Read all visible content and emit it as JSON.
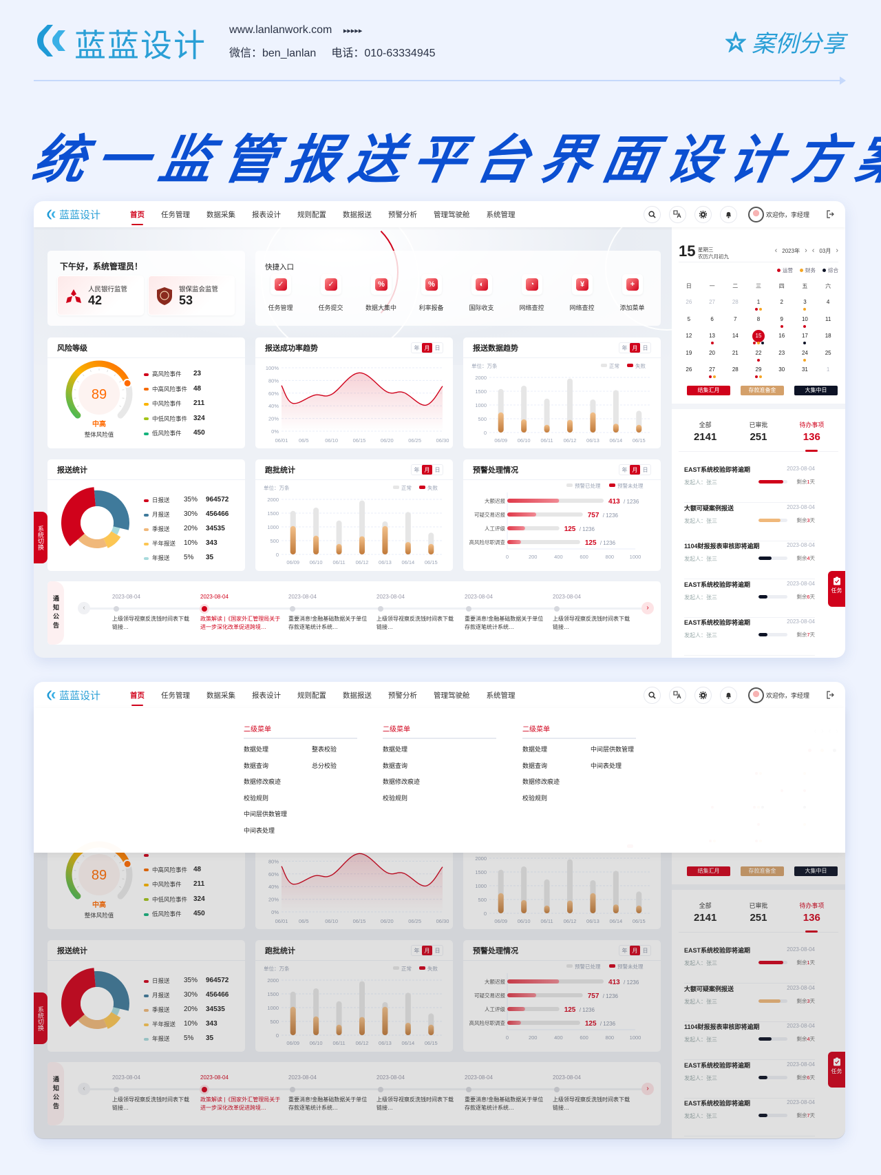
{
  "brand": {
    "logo_text": "蓝蓝设计",
    "website": "www.lanlanwork.com",
    "arrows": "▸▸▸▸▸",
    "wechat": "微信：ben_lanlan",
    "phone": "电话：010-63334945",
    "case_label": "案例分享"
  },
  "page_title": "统一监管报送平台界面设计方案二",
  "app": {
    "logo_text": "蓝蓝设计",
    "nav": [
      "首页",
      "任务管理",
      "数据采集",
      "报表设计",
      "规则配置",
      "数据报送",
      "预警分析",
      "管理驾驶舱",
      "系统管理"
    ],
    "user_greeting": "欢迎你，李经理",
    "greeting": "下午好，系统管理员！",
    "reg_cards": [
      {
        "label": "人民银行监管",
        "value": "42"
      },
      {
        "label": "银保监会监管",
        "value": "53"
      }
    ],
    "quick_title": "快捷入口",
    "quick": [
      {
        "label": "任务管理",
        "glyph": "✓"
      },
      {
        "label": "任务提交",
        "glyph": "✓"
      },
      {
        "label": "数据大集中",
        "glyph": "%"
      },
      {
        "label": "利率报备",
        "glyph": "%"
      },
      {
        "label": "国际收支",
        "glyph": "◐"
      },
      {
        "label": "网络查控",
        "glyph": "◔"
      },
      {
        "label": "网络查控",
        "glyph": "¥"
      },
      {
        "label": "添加菜单",
        "glyph": "+"
      }
    ],
    "segment": [
      "年",
      "月",
      "日"
    ],
    "risk": {
      "title": "风险等级",
      "value": "89",
      "level": "中高",
      "caption": "整体风险值",
      "items": [
        {
          "label": "高风险事件",
          "value": "23",
          "color": "#d0021b"
        },
        {
          "label": "中高风险事件",
          "value": "48",
          "color": "#f56a00"
        },
        {
          "label": "中风险事件",
          "value": "211",
          "color": "#fbb400"
        },
        {
          "label": "中低风险事件",
          "value": "324",
          "color": "#a3c41a"
        },
        {
          "label": "低风险事件",
          "value": "450",
          "color": "#15b37d"
        }
      ]
    },
    "success_title": "报送成功率趋势",
    "trend_title": "报送数据趋势",
    "stats": {
      "title": "报送统计",
      "items": [
        {
          "label": "日报送",
          "pct": "35%",
          "value": "964572",
          "color": "#d0021b"
        },
        {
          "label": "月报送",
          "pct": "30%",
          "value": "456466",
          "color": "#3f7a9b"
        },
        {
          "label": "季报送",
          "pct": "20%",
          "value": "34535",
          "color": "#f0b87a"
        },
        {
          "label": "半年报送",
          "pct": "10%",
          "value": "343",
          "color": "#fcc653"
        },
        {
          "label": "年报送",
          "pct": "5%",
          "value": "35",
          "color": "#a8dadc"
        }
      ]
    },
    "batch_title": "跑批统计",
    "warn_title": "预警处理情况",
    "side_switch": "系统切换",
    "task_float": "任务",
    "notice": {
      "title": "通知公告",
      "items": [
        {
          "date": "2023-08-04",
          "text": "上级领导视察反洗钱时间表下载链接…",
          "active": false
        },
        {
          "date": "2023-08-04",
          "text": "政策解读 |《国家外汇管理局关于进一步深化改革促进跨境…",
          "active": true
        },
        {
          "date": "2023-08-04",
          "text": "重要消息!金融基础数据关于单位存款逐笔统计系统…",
          "active": false
        },
        {
          "date": "2023-08-04",
          "text": "上级领导视察反洗钱时间表下载链接…",
          "active": false
        },
        {
          "date": "2023-08-04",
          "text": "重要消息!金融基础数据关于单位存款逐笔统计系统…",
          "active": false
        },
        {
          "date": "2023-08-04",
          "text": "上级领导视察反洗钱时间表下载链接…",
          "active": false
        }
      ]
    },
    "calendar": {
      "day": "15",
      "weekday": "星期三",
      "lunar": "农历六月初九",
      "year": "2023年",
      "month": "03月",
      "legend": [
        {
          "label": "运营",
          "color": "#d0021b"
        },
        {
          "label": "财务",
          "color": "#f5a623"
        },
        {
          "label": "综合",
          "color": "#0d1326"
        }
      ],
      "weekdays": [
        "日",
        "一",
        "二",
        "三",
        "四",
        "五",
        "六"
      ],
      "weeks": [
        [
          {
            "d": "26",
            "m": true
          },
          {
            "d": "27",
            "m": true
          },
          {
            "d": "28",
            "m": true
          },
          {
            "d": "1",
            "dots": [
              0,
              1
            ]
          },
          {
            "d": "2"
          },
          {
            "d": "3",
            "dots": [
              1
            ]
          },
          {
            "d": "4"
          }
        ],
        [
          {
            "d": "5"
          },
          {
            "d": "6"
          },
          {
            "d": "7"
          },
          {
            "d": "8"
          },
          {
            "d": "9",
            "dots": [
              0
            ]
          },
          {
            "d": "10",
            "dots": [
              0
            ]
          },
          {
            "d": "11"
          }
        ],
        [
          {
            "d": "12"
          },
          {
            "d": "13",
            "dots": [
              0
            ]
          },
          {
            "d": "14"
          },
          {
            "d": "15",
            "sel": true,
            "dots": [
              0,
              1,
              2
            ]
          },
          {
            "d": "16"
          },
          {
            "d": "17",
            "dots": [
              2
            ]
          },
          {
            "d": "18"
          }
        ],
        [
          {
            "d": "19"
          },
          {
            "d": "20"
          },
          {
            "d": "21"
          },
          {
            "d": "22",
            "dots": [
              0
            ]
          },
          {
            "d": "23"
          },
          {
            "d": "24",
            "dots": [
              1
            ]
          },
          {
            "d": "25"
          }
        ],
        [
          {
            "d": "26"
          },
          {
            "d": "27",
            "dots": [
              0,
              1
            ]
          },
          {
            "d": "28"
          },
          {
            "d": "29",
            "dots": [
              0,
              1
            ]
          },
          {
            "d": "30"
          },
          {
            "d": "31"
          },
          {
            "d": "1",
            "m": true
          }
        ]
      ],
      "buttons": [
        {
          "label": "结集汇月",
          "color": "#d0021b"
        },
        {
          "label": "存款准备金",
          "color": "#d4a06a"
        },
        {
          "label": "大集中日",
          "color": "#0d1326"
        }
      ]
    },
    "tasks": {
      "tabs": [
        {
          "label": "全部",
          "count": "2141"
        },
        {
          "label": "已审批",
          "count": "251"
        },
        {
          "label": "待办事项",
          "count": "136",
          "active": true
        }
      ],
      "items": [
        {
          "title": "EAST系统校验即将逾期",
          "date": "2023-08-04",
          "initiator": "发起人：张三",
          "remain_prefix": "剩余",
          "remain_days": "1",
          "remain_suffix": "天",
          "progress": 0.85,
          "color": "#d0021b"
        },
        {
          "title": "大额可疑案例报送",
          "date": "2023-08-04",
          "initiator": "发起人：张三",
          "remain_prefix": "剩余",
          "remain_days": "3",
          "remain_suffix": "天",
          "progress": 0.75,
          "color": "#f0b87a"
        },
        {
          "title": "1104财报报表审核即将逾期",
          "date": "2023-08-04",
          "initiator": "发起人：张三",
          "remain_prefix": "剩余",
          "remain_days": "4",
          "remain_suffix": "天",
          "progress": 0.45,
          "color": "#0d1326"
        },
        {
          "title": "EAST系统校验即将逾期",
          "date": "2023-08-04",
          "initiator": "发起人：张三",
          "remain_prefix": "剩余",
          "remain_days": "6",
          "remain_suffix": "天",
          "progress": 0.3,
          "color": "#0d1326"
        },
        {
          "title": "EAST系统校验即将逾期",
          "date": "2023-08-04",
          "initiator": "发起人：张三",
          "remain_prefix": "剩余",
          "remain_days": "7",
          "remain_suffix": "天",
          "progress": 0.3,
          "color": "#0d1326"
        }
      ]
    },
    "menu": {
      "columns": [
        {
          "title": "二级菜单",
          "groups": [
            [
              "数据处理",
              "数据查询",
              "数据修改痕迹",
              "校验规则",
              "中间层供数管理",
              "中间表处理"
            ],
            [
              "整表校验",
              "总分校验"
            ]
          ]
        },
        {
          "title": "二级菜单",
          "groups": [
            [
              "数据处理",
              "数据查询",
              "数据修改痕迹",
              "校验规则"
            ]
          ]
        },
        {
          "title": "二级菜单",
          "groups": [
            [
              "数据处理",
              "数据查询",
              "数据修改痕迹",
              "校验规则"
            ],
            [
              "中间层供数管理",
              "中间表处理"
            ]
          ]
        }
      ]
    }
  },
  "chart_data": [
    {
      "type": "gauge",
      "title": "风险等级",
      "value": 89,
      "color_stops": [
        "#3dba5b",
        "#f9b400",
        "#ff6a00"
      ]
    },
    {
      "type": "line",
      "title": "报送成功率趋势",
      "x_unit": "day of June",
      "x_ticks": [
        1,
        5,
        10,
        15,
        20,
        25,
        30
      ],
      "x_tick_labels": [
        "06/01",
        "06/5",
        "06/10",
        "06/15",
        "06/20",
        "06/25",
        "06/30"
      ],
      "y_ticks": [
        0,
        20,
        40,
        60,
        80,
        100
      ],
      "y_tick_labels": [
        "0%",
        "20%",
        "40%",
        "60%",
        "80%",
        "100%"
      ],
      "ylim": [
        0,
        100
      ],
      "points": [
        [
          1,
          72
        ],
        [
          3,
          44
        ],
        [
          7,
          57
        ],
        [
          10,
          58
        ],
        [
          15,
          92
        ],
        [
          20,
          62
        ],
        [
          23,
          61
        ],
        [
          27,
          41
        ],
        [
          30,
          71
        ]
      ],
      "color": "#d0021b",
      "grid": true
    },
    {
      "type": "bar",
      "title": "报送数据趋势",
      "unit": "单位：万条",
      "categories": [
        "06/09",
        "06/10",
        "06/11",
        "06/12",
        "06/13",
        "06/14",
        "06/15"
      ],
      "series": [
        {
          "name": "正常",
          "values": [
            1580,
            1700,
            1230,
            1960,
            1200,
            1540,
            790
          ],
          "color": "#e6e6e6"
        },
        {
          "name": "失败",
          "values": [
            730,
            480,
            280,
            460,
            730,
            320,
            280
          ],
          "color": "#c8894a"
        }
      ],
      "ylim": [
        0,
        2000
      ],
      "y_ticks": [
        0,
        500,
        1000,
        1500,
        2000
      ],
      "legend": "top-right",
      "grid": true
    },
    {
      "type": "pie",
      "title": "报送统计",
      "donut": true,
      "labels": [
        "日报送",
        "月报送",
        "季报送",
        "半年报送",
        "年报送"
      ],
      "values": [
        35,
        30,
        20,
        10,
        5
      ],
      "colors": [
        "#d0021b",
        "#3f7a9b",
        "#f0b87a",
        "#fcc653",
        "#a8dadc"
      ]
    },
    {
      "type": "bar",
      "title": "跑批统计",
      "unit": "单位：万条",
      "categories": [
        "06/09",
        "06/10",
        "06/11",
        "06/12",
        "06/13",
        "06/14",
        "06/15"
      ],
      "series": [
        {
          "name": "正常",
          "values": [
            1580,
            1700,
            1230,
            1960,
            1200,
            1540,
            790
          ],
          "color": "#e6e6e6"
        },
        {
          "name": "失败",
          "values": [
            1030,
            680,
            380,
            660,
            1030,
            450,
            380
          ],
          "color": "#c8894a"
        }
      ],
      "ylim": [
        0,
        2000
      ],
      "y_ticks": [
        0,
        500,
        1000,
        1500,
        2000
      ],
      "legend": "top-right",
      "grid": true
    },
    {
      "type": "hbar",
      "title": "预警处理情况",
      "categories": [
        "大额迟报",
        "可疑交易迟报",
        "人工评级",
        "高风险尽职调查"
      ],
      "series": [
        {
          "name": "预警已处理",
          "values": [
            753,
            590,
            407,
            569
          ],
          "color": "#e6e6e6"
        },
        {
          "name": "预警未处理",
          "values": [
            405,
            226,
            139,
            107
          ],
          "color": "#e03a4a"
        }
      ],
      "labels": [
        {
          "count": "413",
          "total": "/ 1236"
        },
        {
          "count": "757",
          "total": "/ 1236"
        },
        {
          "count": "125",
          "total": "/ 1236"
        },
        {
          "count": "125",
          "total": "/ 1236"
        }
      ],
      "xlim": [
        0,
        1000
      ],
      "x_ticks": [
        0,
        200,
        400,
        600,
        800,
        1000
      ],
      "legend": "top-right"
    }
  ]
}
